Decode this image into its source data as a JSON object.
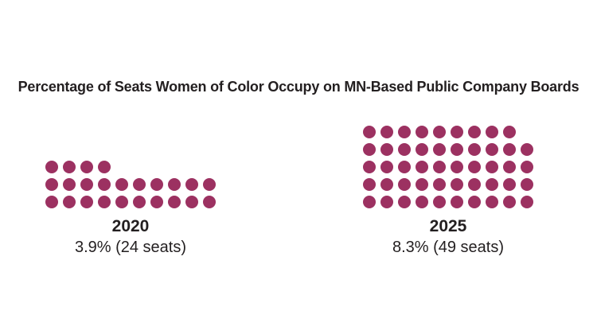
{
  "page": {
    "background": "#FFFFFF"
  },
  "title": {
    "text": "Percentage of Seats Women of Color Occupy on MN-Based Public Company Boards",
    "color": "#231F20"
  },
  "chart_data": {
    "type": "pictogram",
    "unit": "1 dot = 1 board seat",
    "title": "Percentage of Seats Women of Color Occupy on MN-Based Public Company Boards",
    "dot_color": "#9C3161",
    "text_color": "#231F20",
    "legend_position": "none",
    "grid": "off",
    "categories": [
      "2020",
      "2025"
    ],
    "groups": [
      {
        "category": "2020",
        "percent": 3.9,
        "seats": 24,
        "year_label": "2020",
        "value_label": "3.9% (24 seats)",
        "dot_rows": [
          4,
          10,
          10
        ],
        "columns": 10,
        "row_alignment": "left"
      },
      {
        "category": "2025",
        "percent": 8.3,
        "seats": 49,
        "year_label": "2025",
        "value_label": "8.3% (49 seats)",
        "dot_rows": [
          9,
          10,
          10,
          10,
          10
        ],
        "columns": 10,
        "row_alignment": "left"
      }
    ]
  }
}
